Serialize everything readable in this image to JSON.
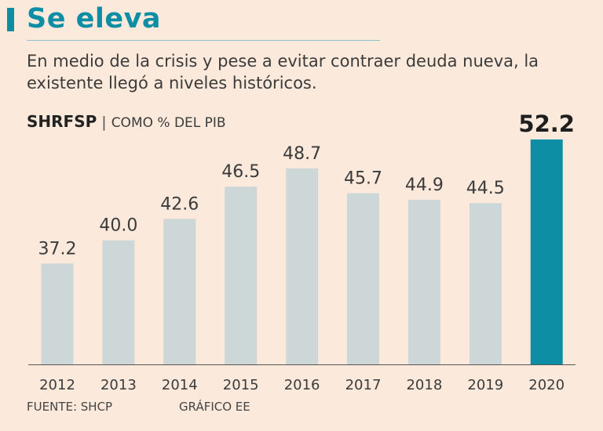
{
  "header": {
    "title": "Se eleva",
    "subtitle": "En medio de la crisis y pese a evitar contraer deuda nueva, la existente llegó a niveles históricos."
  },
  "metric": {
    "name": "SHRFSP",
    "separator": "|",
    "unit": "COMO % DEL PIB"
  },
  "footer": {
    "source": "FUENTE: SHCP",
    "credit": "GRÁFICO EE"
  },
  "colors": {
    "bar": "#cdd7d7",
    "highlight": "#0d8ea4",
    "accent": "#0d8ea4",
    "background": "#fbe9dc"
  },
  "chart_data": {
    "type": "bar",
    "title": "SHRFSP",
    "ylabel": "COMO % DEL PIB",
    "xlabel": "",
    "categories": [
      "2012",
      "2013",
      "2014",
      "2015",
      "2016",
      "2017",
      "2018",
      "2019",
      "2020"
    ],
    "values": [
      37.2,
      40.0,
      42.6,
      46.5,
      48.7,
      45.7,
      44.9,
      44.5,
      52.2
    ],
    "labels": [
      "37.2",
      "40.0",
      "42.6",
      "46.5",
      "48.7",
      "45.7",
      "44.9",
      "44.5",
      "52.2"
    ],
    "highlight_index": 8,
    "ylim": [
      25,
      52.2
    ],
    "grid": false
  }
}
